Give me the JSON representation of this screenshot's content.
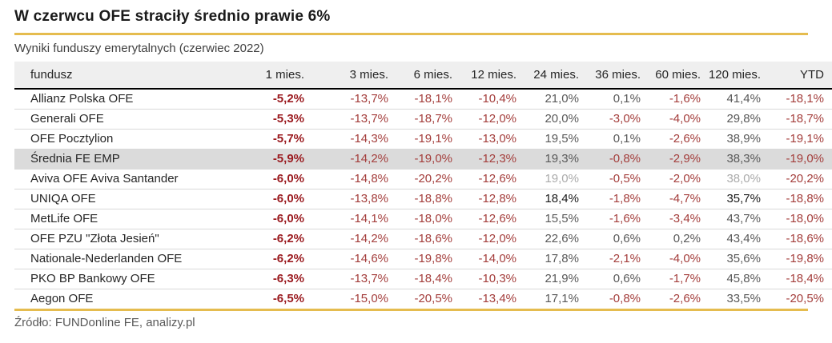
{
  "title": "W czerwcu OFE straciły średnio prawie 6%",
  "subtitle": "Wyniki funduszy emerytalnych (czerwiec 2022)",
  "source": "Źródło: FUNDonline FE, analizy.pl",
  "colors": {
    "accent_gold": "#E5BC4F",
    "negative_red": "#A43E3C",
    "negative_red_bold": "#9B1C21",
    "positive_gray": "#595959",
    "positive_light": "#ABABAB",
    "positive_dark": "#1A1A1A",
    "header_bg": "#EFEFEF",
    "highlight_row_bg": "#DBDBDB",
    "row_border": "#D9D9D9"
  },
  "chart_data": {
    "type": "table",
    "title": "W czerwcu OFE straciły średnio prawie 6%",
    "subtitle": "Wyniki funduszy emerytalnych (czerwiec 2022)",
    "columns": [
      "fundusz",
      "1 mies.",
      "3 mies.",
      "6 mies.",
      "12 mies.",
      "24 mies.",
      "36 mies.",
      "60 mies.",
      "120 mies.",
      "YTD"
    ],
    "rows": [
      {
        "fund": "Allianz Polska OFE",
        "values": [
          "-5,2%",
          "-13,7%",
          "-18,1%",
          "-10,4%",
          "21,0%",
          "0,1%",
          "-1,6%",
          "41,4%",
          "-18,1%"
        ],
        "highlight": false,
        "positive_tone": "normal"
      },
      {
        "fund": "Generali OFE",
        "values": [
          "-5,3%",
          "-13,7%",
          "-18,7%",
          "-12,0%",
          "20,0%",
          "-3,0%",
          "-4,0%",
          "29,8%",
          "-18,7%"
        ],
        "highlight": false,
        "positive_tone": "normal"
      },
      {
        "fund": "OFE Pocztylion",
        "values": [
          "-5,7%",
          "-14,3%",
          "-19,1%",
          "-13,0%",
          "19,5%",
          "0,1%",
          "-2,6%",
          "38,9%",
          "-19,1%"
        ],
        "highlight": false,
        "positive_tone": "normal"
      },
      {
        "fund": "Średnia FE EMP",
        "values": [
          "-5,9%",
          "-14,2%",
          "-19,0%",
          "-12,3%",
          "19,3%",
          "-0,8%",
          "-2,9%",
          "38,3%",
          "-19,0%"
        ],
        "highlight": true,
        "positive_tone": "normal"
      },
      {
        "fund": "Aviva OFE Aviva Santander",
        "values": [
          "-6,0%",
          "-14,8%",
          "-20,2%",
          "-12,6%",
          "19,0%",
          "-0,5%",
          "-2,0%",
          "38,0%",
          "-20,2%"
        ],
        "highlight": false,
        "positive_tone": "light"
      },
      {
        "fund": "UNIQA OFE",
        "values": [
          "-6,0%",
          "-13,8%",
          "-18,8%",
          "-12,8%",
          "18,4%",
          "-1,8%",
          "-4,7%",
          "35,7%",
          "-18,8%"
        ],
        "highlight": false,
        "positive_tone": "dark"
      },
      {
        "fund": "MetLife OFE",
        "values": [
          "-6,0%",
          "-14,1%",
          "-18,0%",
          "-12,6%",
          "15,5%",
          "-1,6%",
          "-3,4%",
          "43,7%",
          "-18,0%"
        ],
        "highlight": false,
        "positive_tone": "normal"
      },
      {
        "fund": "OFE PZU \"Złota Jesień\"",
        "values": [
          "-6,2%",
          "-14,2%",
          "-18,6%",
          "-12,0%",
          "22,6%",
          "0,6%",
          "0,2%",
          "43,4%",
          "-18,6%"
        ],
        "highlight": false,
        "positive_tone": "normal"
      },
      {
        "fund": "Nationale-Nederlanden OFE",
        "values": [
          "-6,2%",
          "-14,6%",
          "-19,8%",
          "-14,0%",
          "17,8%",
          "-2,1%",
          "-4,0%",
          "35,6%",
          "-19,8%"
        ],
        "highlight": false,
        "positive_tone": "normal"
      },
      {
        "fund": "PKO BP Bankowy OFE",
        "values": [
          "-6,3%",
          "-13,7%",
          "-18,4%",
          "-10,3%",
          "21,9%",
          "0,6%",
          "-1,7%",
          "45,8%",
          "-18,4%"
        ],
        "highlight": false,
        "positive_tone": "normal"
      },
      {
        "fund": "Aegon OFE",
        "values": [
          "-6,5%",
          "-15,0%",
          "-20,5%",
          "-13,4%",
          "17,1%",
          "-0,8%",
          "-2,6%",
          "33,5%",
          "-20,5%"
        ],
        "highlight": false,
        "positive_tone": "normal"
      }
    ]
  }
}
